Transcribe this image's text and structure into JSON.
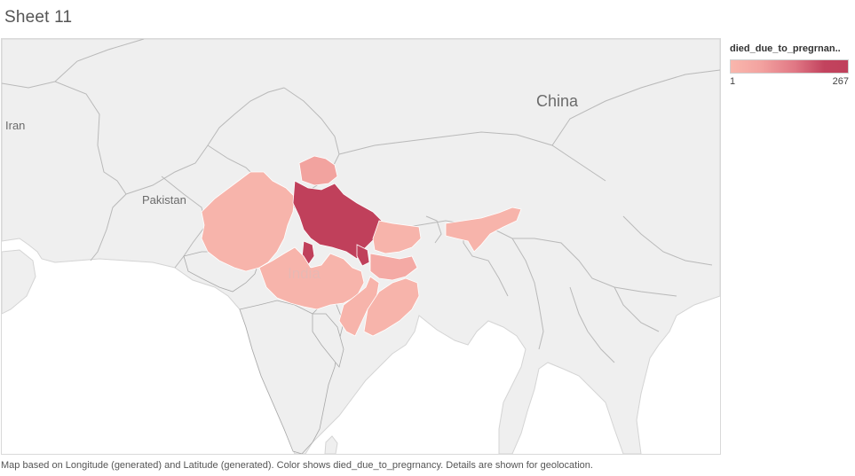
{
  "sheet": {
    "title": "Sheet 11"
  },
  "map": {
    "country_labels": {
      "iran": "Iran",
      "pakistan": "Pakistan",
      "china": "China",
      "india": "India"
    },
    "colors": {
      "ocean": "#ffffff",
      "land": "#efefef",
      "border": "#b9b9b9",
      "low": "#f9b7ad",
      "high": "#c0405b"
    }
  },
  "legend": {
    "title": "died_due_to_pregrnan..",
    "min": "1",
    "max": "267"
  },
  "caption": "Map based on Longitude (generated) and Latitude (generated).  Color shows died_due_to_pregrnancy.  Details are shown for geolocation."
}
